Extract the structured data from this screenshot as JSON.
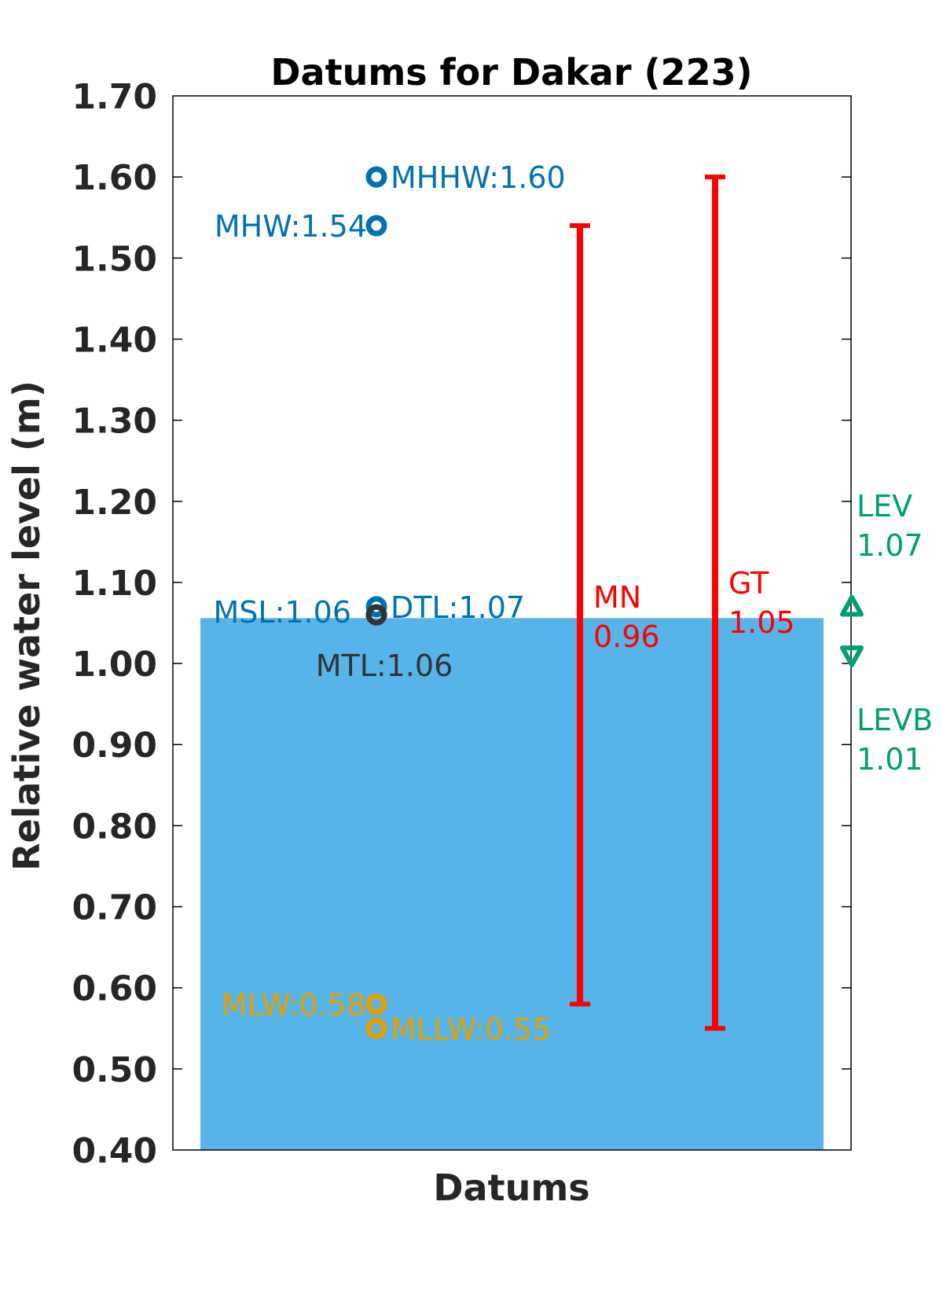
{
  "chart_data": {
    "type": "scatter",
    "title": "Datums for Dakar (223)",
    "xlabel": "Datums",
    "ylabel": "Relative water level (m)",
    "ylim": [
      0.4,
      1.7
    ],
    "yticks": [
      "0.40",
      "0.50",
      "0.60",
      "0.70",
      "0.80",
      "0.90",
      "1.00",
      "1.10",
      "1.20",
      "1.30",
      "1.40",
      "1.50",
      "1.60",
      "1.70"
    ],
    "grid": false,
    "background_bar": {
      "value": 1.056,
      "color": "#56B4E9"
    },
    "datums": [
      {
        "name": "MHHW",
        "value": 1.6,
        "label": "MHHW:1.60",
        "color": "#0072B2",
        "label_side": "right"
      },
      {
        "name": "MHW",
        "value": 1.54,
        "label": "MHW:1.54",
        "color": "#0072B2",
        "label_side": "left"
      },
      {
        "name": "DTL",
        "value": 1.07,
        "label": "DTL:1.07",
        "color": "#0072B2",
        "label_side": "right"
      },
      {
        "name": "MSL",
        "value": 1.06,
        "label": "MSL:1.06",
        "color": "#0072B2",
        "label_side": "left"
      },
      {
        "name": "MTL",
        "value": 1.06,
        "label": "MTL:1.06",
        "color": "#333333",
        "label_side": "below"
      },
      {
        "name": "MLW",
        "value": 0.58,
        "label": "MLW:0.58",
        "color": "#E69F00",
        "label_side": "left"
      },
      {
        "name": "MLLW",
        "value": 0.55,
        "label": "MLLW:0.55",
        "color": "#E69F00",
        "label_side": "right"
      }
    ],
    "ranges": [
      {
        "name": "MN",
        "label_name": "MN",
        "label_value": "0.96",
        "low": 0.58,
        "high": 1.54,
        "color": "#FF0000"
      },
      {
        "name": "GT",
        "label_name": "GT",
        "label_value": "1.05",
        "low": 0.55,
        "high": 1.6,
        "color": "#FF0000"
      }
    ],
    "extremes": [
      {
        "name": "LEV",
        "label_name": "LEV",
        "label_value": "1.07",
        "value": 1.07,
        "marker": "triangle-up",
        "color": "#009E73"
      },
      {
        "name": "LEVB",
        "label_name": "LEVB",
        "label_value": "1.01",
        "value": 1.01,
        "marker": "triangle-down",
        "color": "#009E73"
      }
    ]
  }
}
